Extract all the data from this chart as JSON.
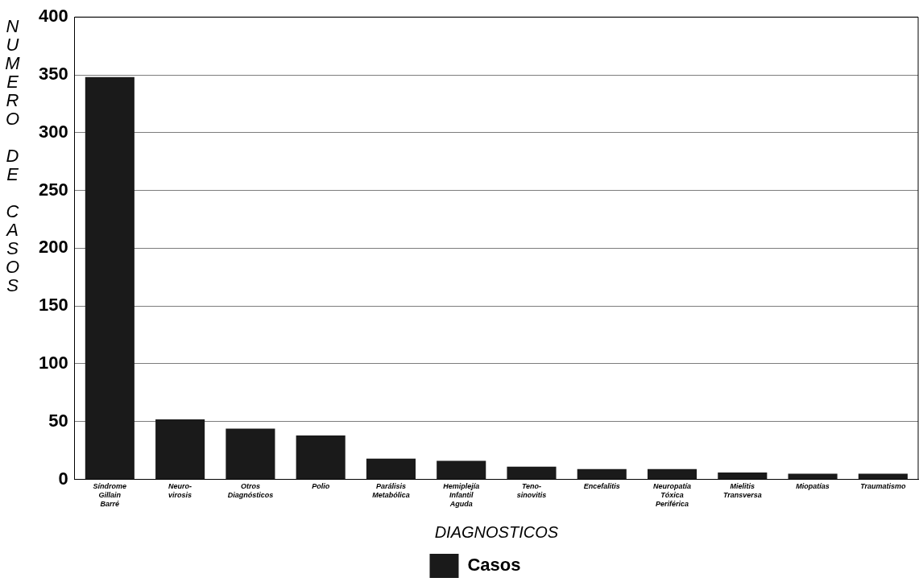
{
  "chart_data": {
    "type": "bar",
    "xlabel": "DIAGNOSTICOS",
    "ylabel": "NUMERO DE CASOS",
    "categories": [
      "Síndrome\nGillain\nBarré",
      "Neuro-\nvirosis",
      "Otros\nDiagnósticos",
      "Polio",
      "Parálisis\nMetabólica",
      "Hemiplejía\nInfantil\nAguda",
      "Teno-\nsinovitis",
      "Encefalitis",
      "Neuropatía\nTóxica\nPeriférica",
      "Mielitis\nTransversa",
      "Miopatías",
      "Traumatismo"
    ],
    "series": [
      {
        "name": "Casos",
        "color": "#1a1a1a",
        "values": [
          348,
          52,
          44,
          38,
          18,
          16,
          11,
          9,
          9,
          6,
          5,
          5
        ]
      }
    ],
    "ylim": [
      0,
      400
    ],
    "yticks": [
      0,
      50,
      100,
      150,
      200,
      250,
      300,
      350,
      400
    ],
    "grid": "y",
    "legend": "bottom"
  }
}
